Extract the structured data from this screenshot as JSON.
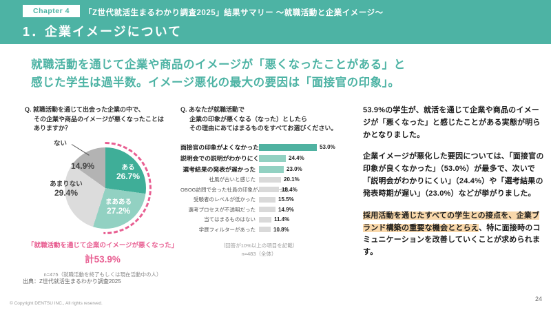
{
  "theme": {
    "accent": "#4db3a4",
    "pink": "#e85f92",
    "highlight_bg": "#f9d8ab",
    "text_dark": "#222222"
  },
  "header": {
    "chapter_badge": "Chapter 4",
    "title": "「Z世代就活生まるわかり調査2025」結果サマリー ～就職活動と企業イメージ～",
    "section_title": "1．企業イメージについて"
  },
  "headline": {
    "line1": "就職活動を通じて企業や商品のイメージが「悪くなったことがある」と",
    "line2": "感じた学生は過半数。イメージ悪化の最大の要因は「面接官の印象」。"
  },
  "chart_data": [
    {
      "type": "pie",
      "question_lines": [
        "Q. 就職活動を通じて出会った企業の中で、",
        "その企業や商品のイメージが悪くなったことは",
        "ありますか？"
      ],
      "slices": [
        {
          "label": "ある",
          "value": 26.7,
          "display": "26.7%",
          "color": "#3fae98"
        },
        {
          "label": "まあある",
          "value": 27.2,
          "display": "27.2%",
          "color": "#92d1c2"
        },
        {
          "label": "あまりない",
          "value": 29.4,
          "display": "29.4%",
          "color": "#dcdcdc"
        },
        {
          "label": "ない",
          "value": 14.9,
          "display": "14.9%",
          "color": "#b3b3b3"
        }
      ],
      "legend_position": "inside",
      "highlight_note": "「就職活動を通じて企業のイメージが悪くなった」",
      "highlight_total": "計53.9%",
      "sample_note": "n=475（就職活動を終了もしくは現在活動中の人）"
    },
    {
      "type": "bar",
      "question_lines": [
        "Q. あなたが就職活動で",
        "企業の印象が悪くなる（なった）としたら",
        "その理由にあてはまるものをすべてお選びください。"
      ],
      "categories": [
        "面接官の印象がよくなかった",
        "説明会での説明がわかりにくかった",
        "選考結果の発表が遅かった",
        "社風が古いと感じた",
        "OBOG訪問で会った社員の印象がよくなかった",
        "受験者のレベルが低かった",
        "選考プロセスが不透明だった",
        "当てはまるものはない",
        "学歴フィルターがあった"
      ],
      "values": [
        53.0,
        24.4,
        23.0,
        20.1,
        18.4,
        15.5,
        14.9,
        11.4,
        10.8
      ],
      "display_values": [
        "53.0%",
        "24.4%",
        "23.0%",
        "20.1%",
        "18.4%",
        "15.5%",
        "14.9%",
        "11.4%",
        "10.8%"
      ],
      "colors": [
        "#4fb2a1",
        "#92d1c2",
        "#92d1c2",
        "#d9d9d9",
        "#d9d9d9",
        "#d9d9d9",
        "#d9d9d9",
        "#d9d9d9",
        "#d9d9d9"
      ],
      "emphasized_count": 3,
      "xlim": [
        0,
        60
      ],
      "grid": false,
      "notes": [
        "（回答が10%以上の項目を記載）",
        "n=483（全体）"
      ]
    }
  ],
  "commentary": {
    "para1": "53.9%の学生が、就活を通じて企業や商品のイメージが「悪くなった」と感じたことがある実態が明らかとなりました。",
    "para2": "企業イメージが悪化した要因については、「面接官の印象が良くなかった」（53.0%）が最多で、次いで「説明会がわかりにくい」（24.4%）や「選考結果の発表時期が遅い」（23.0%）などが挙がりました。",
    "para3_highlight": "採用活動を通じたすべての学生との接点を、企業ブランド構築の重要な機会ととらえ",
    "para3_rest": "、特に面接時のコミュニケーションを改善していくことが求められます。"
  },
  "footer": {
    "source": "出典：Z世代就活生まるわかり調査2025",
    "copyright": "© Copyright DENTSU INC., All rights reserved.",
    "page_number": "24"
  }
}
